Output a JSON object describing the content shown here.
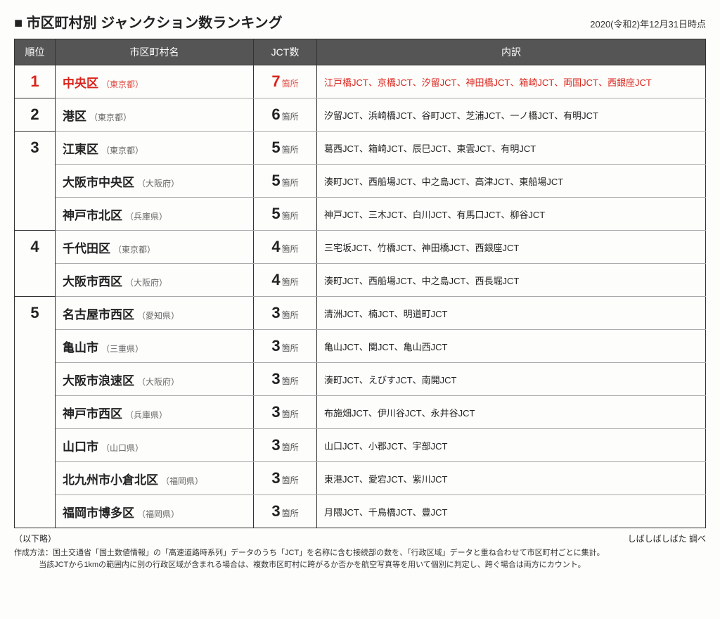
{
  "header": {
    "title": "■ 市区町村別 ジャンクション数ランキング",
    "asof": "2020(令和2)年12月31日時点"
  },
  "columns": {
    "rank": "順位",
    "city": "市区町村名",
    "count": "JCT数",
    "detail": "内訳"
  },
  "count_unit": "箇所",
  "groups": [
    {
      "rank": "1",
      "highlight": true,
      "rows": [
        {
          "city": "中央区",
          "pref": "（東京都）",
          "count": "7",
          "detail": "江戸橋JCT、京橋JCT、汐留JCT、神田橋JCT、箱崎JCT、両国JCT、西銀座JCT"
        }
      ]
    },
    {
      "rank": "2",
      "highlight": false,
      "rows": [
        {
          "city": "港区",
          "pref": "（東京都）",
          "count": "6",
          "detail": "汐留JCT、浜崎橋JCT、谷町JCT、芝浦JCT、一ノ橋JCT、有明JCT"
        }
      ]
    },
    {
      "rank": "3",
      "highlight": false,
      "rows": [
        {
          "city": "江東区",
          "pref": "（東京都）",
          "count": "5",
          "detail": "葛西JCT、箱崎JCT、辰巳JCT、東雲JCT、有明JCT"
        },
        {
          "city": "大阪市中央区",
          "pref": "（大阪府）",
          "count": "5",
          "detail": "湊町JCT、西船場JCT、中之島JCT、高津JCT、東船場JCT"
        },
        {
          "city": "神戸市北区",
          "pref": "（兵庫県）",
          "count": "5",
          "detail": "神戸JCT、三木JCT、白川JCT、有馬口JCT、柳谷JCT"
        }
      ]
    },
    {
      "rank": "4",
      "highlight": false,
      "rows": [
        {
          "city": "千代田区",
          "pref": "（東京都）",
          "count": "4",
          "detail": "三宅坂JCT、竹橋JCT、神田橋JCT、西銀座JCT"
        },
        {
          "city": "大阪市西区",
          "pref": "（大阪府）",
          "count": "4",
          "detail": "湊町JCT、西船場JCT、中之島JCT、西長堀JCT"
        }
      ]
    },
    {
      "rank": "5",
      "highlight": false,
      "rows": [
        {
          "city": "名古屋市西区",
          "pref": "（愛知県）",
          "count": "3",
          "detail": "清洲JCT、楠JCT、明道町JCT"
        },
        {
          "city": "亀山市",
          "pref": "（三重県）",
          "count": "3",
          "detail": "亀山JCT、関JCT、亀山西JCT"
        },
        {
          "city": "大阪市浪速区",
          "pref": "（大阪府）",
          "count": "3",
          "detail": "湊町JCT、えびすJCT、南開JCT"
        },
        {
          "city": "神戸市西区",
          "pref": "（兵庫県）",
          "count": "3",
          "detail": "布施畑JCT、伊川谷JCT、永井谷JCT"
        },
        {
          "city": "山口市",
          "pref": "（山口県）",
          "count": "3",
          "detail": "山口JCT、小郡JCT、宇部JCT"
        },
        {
          "city": "北九州市小倉北区",
          "pref": "（福岡県）",
          "count": "3",
          "detail": "東港JCT、愛宕JCT、紫川JCT"
        },
        {
          "city": "福岡市博多区",
          "pref": "（福岡県）",
          "count": "3",
          "detail": "月隈JCT、千鳥橋JCT、豊JCT"
        }
      ]
    }
  ],
  "footer": {
    "omitted": "（以下略）",
    "credit": "しばしばしばた 調べ"
  },
  "notes": {
    "prefix": "作成方法：",
    "line1": "国土交通省「国土数値情報」の「高速道路時系列」データのうち「JCT」を名称に含む接続部の数を、「行政区域」データと重ね合わせて市区町村ごとに集計。",
    "line2": "当該JCTから1kmの範囲内に別の行政区域が含まれる場合は、複数市区町村に跨がるか否かを航空写真等を用いて個別に判定し、跨ぐ場合は両方にカウント。"
  }
}
